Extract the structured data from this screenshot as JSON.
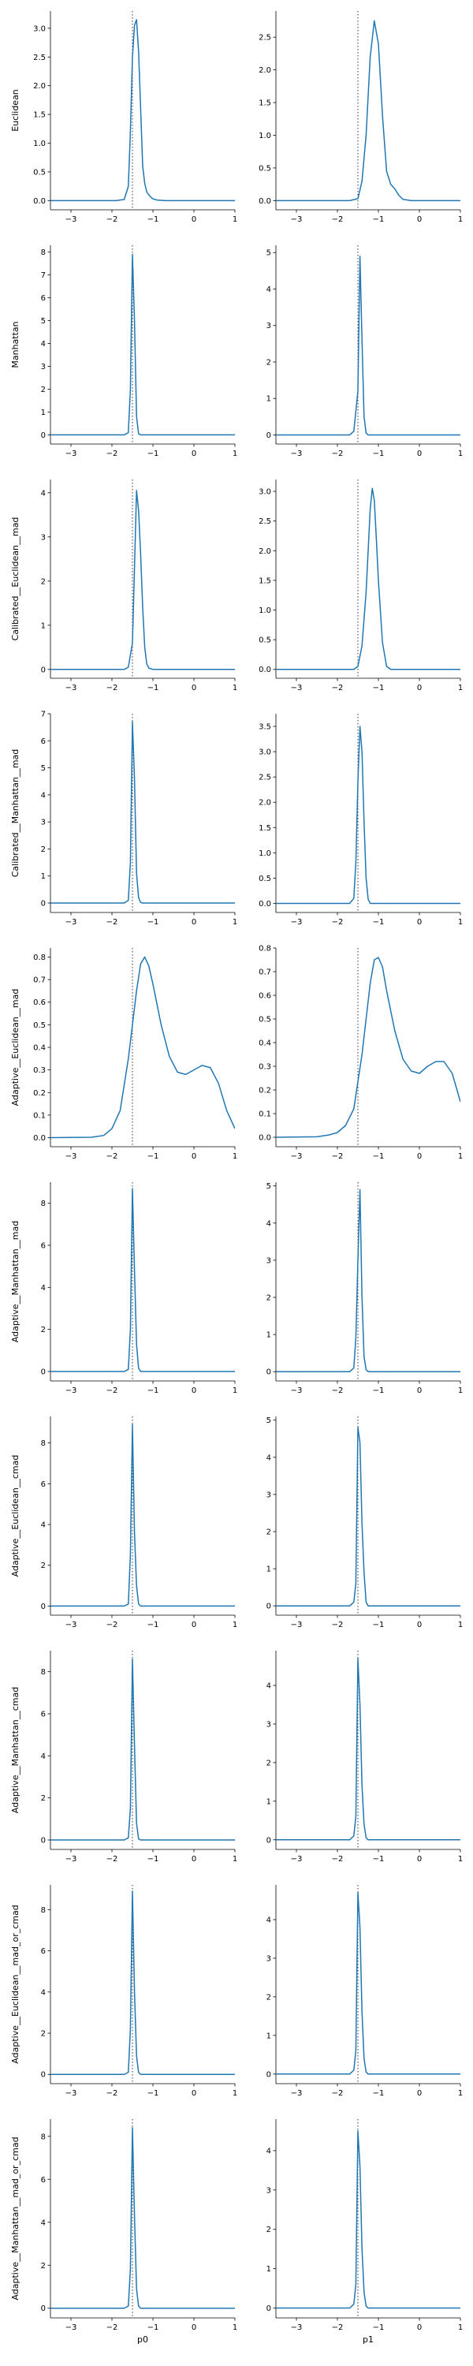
{
  "figure": {
    "xlabels": [
      "p0",
      "p1"
    ],
    "row_labels": [
      "Euclidean",
      "Manhattan",
      "Calibrated__Euclidean__mad",
      "Calibrated__Manhattan__mad",
      "Adaptive__Euclidean__mad",
      "Adaptive__Manhattan__mad",
      "Adaptive__Euclidean__cmad",
      "Adaptive__Manhattan__cmad",
      "Adaptive__Euclidean__mad_or_cmad",
      "Adaptive__Manhattan__mad_or_cmad"
    ],
    "colors": {
      "line": "#1f77b4",
      "axis": "#000000",
      "reference": "#333333"
    }
  },
  "chart_data": [
    {
      "type": "line",
      "row": 0,
      "col": 0,
      "xlabel": "",
      "ylabel": "Euclidean",
      "xlim": [
        -3.5,
        1
      ],
      "ylim": [
        -0.16,
        3.3
      ],
      "xticks": [
        -3,
        -2,
        -1,
        0,
        1
      ],
      "yticks": [
        0.0,
        0.5,
        1.0,
        1.5,
        2.0,
        2.5,
        3.0
      ],
      "reference_x": -1.5,
      "x": [
        -3.5,
        -1.9,
        -1.7,
        -1.6,
        -1.55,
        -1.5,
        -1.45,
        -1.4,
        -1.35,
        -1.3,
        -1.25,
        -1.2,
        -1.15,
        -1.1,
        -1.05,
        -1.0,
        -0.9,
        -0.7,
        1.0
      ],
      "y": [
        0,
        0,
        0.02,
        0.25,
        1.2,
        2.5,
        3.05,
        3.15,
        2.6,
        1.6,
        0.6,
        0.3,
        0.15,
        0.1,
        0.06,
        0.03,
        0.01,
        0,
        0
      ]
    },
    {
      "type": "line",
      "row": 0,
      "col": 1,
      "xlabel": "",
      "ylabel": "",
      "xlim": [
        -3.5,
        1
      ],
      "ylim": [
        -0.14,
        2.9
      ],
      "xticks": [
        -3,
        -2,
        -1,
        0,
        1
      ],
      "yticks": [
        0.0,
        0.5,
        1.0,
        1.5,
        2.0,
        2.5
      ],
      "reference_x": -1.5,
      "x": [
        -3.5,
        -1.7,
        -1.5,
        -1.4,
        -1.3,
        -1.2,
        -1.1,
        -1.0,
        -0.9,
        -0.8,
        -0.7,
        -0.6,
        -0.5,
        -0.4,
        -0.2,
        1.0
      ],
      "y": [
        0,
        0,
        0.03,
        0.3,
        1.0,
        2.2,
        2.75,
        2.4,
        1.3,
        0.45,
        0.25,
        0.18,
        0.08,
        0.02,
        0,
        0
      ]
    },
    {
      "type": "line",
      "row": 1,
      "col": 0,
      "xlabel": "",
      "ylabel": "Manhattan",
      "xlim": [
        -3.5,
        1
      ],
      "ylim": [
        -0.4,
        8.3
      ],
      "xticks": [
        -3,
        -2,
        -1,
        0,
        1
      ],
      "yticks": [
        0,
        1,
        2,
        3,
        4,
        5,
        6,
        7,
        8
      ],
      "reference_x": -1.5,
      "x": [
        -3.5,
        -1.7,
        -1.6,
        -1.55,
        -1.5,
        -1.45,
        -1.4,
        -1.35,
        -1.3,
        1.0
      ],
      "y": [
        0,
        0,
        0.1,
        2.0,
        7.9,
        5.0,
        0.8,
        0.05,
        0,
        0
      ]
    },
    {
      "type": "line",
      "row": 1,
      "col": 1,
      "xlabel": "",
      "ylabel": "",
      "xlim": [
        -3.5,
        1
      ],
      "ylim": [
        -0.25,
        5.2
      ],
      "xticks": [
        -3,
        -2,
        -1,
        0,
        1
      ],
      "yticks": [
        0,
        1,
        2,
        3,
        4,
        5
      ],
      "reference_x": -1.5,
      "x": [
        -3.5,
        -1.7,
        -1.6,
        -1.5,
        -1.45,
        -1.4,
        -1.35,
        -1.3,
        -1.25,
        1.0
      ],
      "y": [
        0,
        0,
        0.1,
        1.2,
        4.9,
        2.6,
        0.5,
        0.05,
        0,
        0
      ]
    },
    {
      "type": "line",
      "row": 2,
      "col": 0,
      "xlabel": "",
      "ylabel": "Calibrated__Euclidean__mad",
      "xlim": [
        -3.5,
        1
      ],
      "ylim": [
        -0.2,
        4.3
      ],
      "xticks": [
        -3,
        -2,
        -1,
        0,
        1
      ],
      "yticks": [
        0,
        1,
        2,
        3,
        4
      ],
      "reference_x": -1.5,
      "x": [
        -3.5,
        -1.7,
        -1.6,
        -1.5,
        -1.45,
        -1.4,
        -1.35,
        -1.3,
        -1.25,
        -1.2,
        -1.15,
        -1.1,
        -1.0,
        1.0
      ],
      "y": [
        0,
        0,
        0.05,
        0.6,
        2.3,
        4.05,
        3.6,
        2.6,
        1.4,
        0.5,
        0.12,
        0.03,
        0,
        0
      ]
    },
    {
      "type": "line",
      "row": 2,
      "col": 1,
      "xlabel": "",
      "ylabel": "",
      "xlim": [
        -3.5,
        1
      ],
      "ylim": [
        -0.15,
        3.2
      ],
      "xticks": [
        -3,
        -2,
        -1,
        0,
        1
      ],
      "yticks": [
        0.0,
        0.5,
        1.0,
        1.5,
        2.0,
        2.5,
        3.0
      ],
      "reference_x": -1.5,
      "x": [
        -3.5,
        -1.6,
        -1.5,
        -1.4,
        -1.3,
        -1.2,
        -1.15,
        -1.1,
        -1.05,
        -1.0,
        -0.9,
        -0.8,
        -0.7,
        1.0
      ],
      "y": [
        0,
        0,
        0.05,
        0.4,
        1.3,
        2.7,
        3.05,
        2.85,
        2.2,
        1.5,
        0.45,
        0.05,
        0,
        0
      ]
    },
    {
      "type": "line",
      "row": 3,
      "col": 0,
      "xlabel": "",
      "ylabel": "Calibrated__Manhattan__mad",
      "xlim": [
        -3.5,
        1
      ],
      "ylim": [
        -0.35,
        7.0
      ],
      "xticks": [
        -3,
        -2,
        -1,
        0,
        1
      ],
      "yticks": [
        0,
        1,
        2,
        3,
        4,
        5,
        6,
        7
      ],
      "reference_x": -1.5,
      "x": [
        -3.5,
        -1.7,
        -1.6,
        -1.55,
        -1.5,
        -1.45,
        -1.4,
        -1.35,
        -1.3,
        -1.25,
        1.0
      ],
      "y": [
        0,
        0,
        0.1,
        1.5,
        6.7,
        4.6,
        1.1,
        0.2,
        0.02,
        0,
        0
      ]
    },
    {
      "type": "line",
      "row": 3,
      "col": 1,
      "xlabel": "",
      "ylabel": "",
      "xlim": [
        -3.5,
        1
      ],
      "ylim": [
        -0.18,
        3.75
      ],
      "xticks": [
        -3,
        -2,
        -1,
        0,
        1
      ],
      "yticks": [
        0.0,
        0.5,
        1.0,
        1.5,
        2.0,
        2.5,
        3.0,
        3.5
      ],
      "reference_x": -1.5,
      "x": [
        -3.5,
        -1.7,
        -1.6,
        -1.55,
        -1.5,
        -1.45,
        -1.4,
        -1.35,
        -1.3,
        -1.25,
        -1.2,
        1.0
      ],
      "y": [
        0,
        0,
        0.1,
        0.8,
        2.4,
        3.5,
        3.0,
        1.6,
        0.5,
        0.08,
        0,
        0
      ]
    },
    {
      "type": "line",
      "row": 4,
      "col": 0,
      "xlabel": "",
      "ylabel": "Adaptive__Euclidean__mad",
      "xlim": [
        -3.5,
        1
      ],
      "ylim": [
        -0.04,
        0.84
      ],
      "xticks": [
        -3,
        -2,
        -1,
        0,
        1
      ],
      "yticks": [
        0.0,
        0.1,
        0.2,
        0.3,
        0.4,
        0.5,
        0.6,
        0.7,
        0.8
      ],
      "reference_x": -1.5,
      "x": [
        -3.5,
        -2.5,
        -2.2,
        -2.0,
        -1.8,
        -1.6,
        -1.4,
        -1.3,
        -1.2,
        -1.1,
        -1.0,
        -0.8,
        -0.6,
        -0.4,
        -0.2,
        0.0,
        0.2,
        0.4,
        0.6,
        0.8,
        1.0
      ],
      "y": [
        0,
        0.002,
        0.01,
        0.04,
        0.12,
        0.35,
        0.65,
        0.77,
        0.8,
        0.76,
        0.68,
        0.5,
        0.36,
        0.29,
        0.28,
        0.3,
        0.32,
        0.31,
        0.24,
        0.12,
        0.04
      ]
    },
    {
      "type": "line",
      "row": 4,
      "col": 1,
      "xlabel": "",
      "ylabel": "",
      "xlim": [
        -3.5,
        1
      ],
      "ylim": [
        -0.04,
        0.8
      ],
      "xticks": [
        -3,
        -2,
        -1,
        0,
        1
      ],
      "yticks": [
        0.0,
        0.1,
        0.2,
        0.3,
        0.4,
        0.5,
        0.6,
        0.7,
        0.8
      ],
      "reference_x": -1.5,
      "x": [
        -3.5,
        -2.5,
        -2.2,
        -2.0,
        -1.8,
        -1.6,
        -1.4,
        -1.2,
        -1.1,
        -1.0,
        -0.9,
        -0.8,
        -0.6,
        -0.4,
        -0.2,
        0.0,
        0.2,
        0.4,
        0.6,
        0.8,
        1.0
      ],
      "y": [
        0,
        0.002,
        0.01,
        0.02,
        0.05,
        0.12,
        0.35,
        0.65,
        0.75,
        0.76,
        0.72,
        0.62,
        0.45,
        0.33,
        0.28,
        0.27,
        0.3,
        0.32,
        0.32,
        0.27,
        0.15
      ]
    },
    {
      "type": "line",
      "row": 5,
      "col": 0,
      "xlabel": "",
      "ylabel": "Adaptive__Manhattan__mad",
      "xlim": [
        -3.5,
        1
      ],
      "ylim": [
        -0.45,
        9.0
      ],
      "xticks": [
        -3,
        -2,
        -1,
        0,
        1
      ],
      "yticks": [
        0,
        2,
        4,
        6,
        8
      ],
      "reference_x": -1.5,
      "x": [
        -3.5,
        -1.7,
        -1.6,
        -1.55,
        -1.5,
        -1.45,
        -1.4,
        -1.35,
        -1.3,
        1.0
      ],
      "y": [
        0,
        0,
        0.1,
        2.0,
        8.7,
        4.8,
        1.3,
        0.15,
        0,
        0
      ]
    },
    {
      "type": "line",
      "row": 5,
      "col": 1,
      "xlabel": "",
      "ylabel": "",
      "xlim": [
        -3.5,
        1
      ],
      "ylim": [
        -0.25,
        5.1
      ],
      "xticks": [
        -3,
        -2,
        -1,
        0,
        1
      ],
      "yticks": [
        0,
        1,
        2,
        3,
        4,
        5
      ],
      "reference_x": -1.5,
      "x": [
        -3.5,
        -1.7,
        -1.6,
        -1.55,
        -1.5,
        -1.45,
        -1.4,
        -1.35,
        -1.3,
        -1.25,
        1.0
      ],
      "y": [
        0,
        0,
        0.1,
        0.9,
        3.0,
        4.9,
        2.0,
        0.4,
        0.05,
        0,
        0
      ]
    },
    {
      "type": "line",
      "row": 6,
      "col": 0,
      "xlabel": "",
      "ylabel": "Adaptive__Euclidean__cmad",
      "xlim": [
        -3.5,
        1
      ],
      "ylim": [
        -0.45,
        9.3
      ],
      "xticks": [
        -3,
        -2,
        -1,
        0,
        1
      ],
      "yticks": [
        0,
        2,
        4,
        6,
        8
      ],
      "reference_x": -1.5,
      "x": [
        -3.5,
        -1.7,
        -1.6,
        -1.55,
        -1.5,
        -1.45,
        -1.4,
        -1.35,
        -1.3,
        1.0
      ],
      "y": [
        0,
        0,
        0.1,
        2.5,
        8.9,
        3.6,
        1.0,
        0.1,
        0,
        0
      ]
    },
    {
      "type": "line",
      "row": 6,
      "col": 1,
      "xlabel": "",
      "ylabel": "",
      "xlim": [
        -3.5,
        1
      ],
      "ylim": [
        -0.25,
        5.1
      ],
      "xticks": [
        -3,
        -2,
        -1,
        0,
        1
      ],
      "yticks": [
        0,
        1,
        2,
        3,
        4,
        5
      ],
      "reference_x": -1.5,
      "x": [
        -3.5,
        -1.7,
        -1.6,
        -1.55,
        -1.5,
        -1.45,
        -1.4,
        -1.35,
        -1.3,
        -1.25,
        1.0
      ],
      "y": [
        0,
        0,
        0.1,
        0.6,
        4.8,
        4.4,
        2.2,
        0.9,
        0.1,
        0,
        0
      ]
    },
    {
      "type": "line",
      "row": 7,
      "col": 0,
      "xlabel": "",
      "ylabel": "Adaptive__Manhattan__cmad",
      "xlim": [
        -3.5,
        1
      ],
      "ylim": [
        -0.45,
        9.0
      ],
      "xticks": [
        -3,
        -2,
        -1,
        0,
        1
      ],
      "yticks": [
        0,
        2,
        4,
        6,
        8
      ],
      "reference_x": -1.5,
      "x": [
        -3.5,
        -1.7,
        -1.6,
        -1.55,
        -1.5,
        -1.45,
        -1.4,
        -1.35,
        -1.3,
        1.0
      ],
      "y": [
        0,
        0,
        0.1,
        1.5,
        8.6,
        4.5,
        0.8,
        0.05,
        0,
        0
      ]
    },
    {
      "type": "line",
      "row": 7,
      "col": 1,
      "xlabel": "",
      "ylabel": "",
      "xlim": [
        -3.5,
        1
      ],
      "ylim": [
        -0.25,
        4.9
      ],
      "xticks": [
        -3,
        -2,
        -1,
        0,
        1
      ],
      "yticks": [
        0,
        1,
        2,
        3,
        4
      ],
      "reference_x": -1.5,
      "x": [
        -3.5,
        -1.7,
        -1.6,
        -1.55,
        -1.5,
        -1.45,
        -1.4,
        -1.35,
        -1.3,
        -1.25,
        1.0
      ],
      "y": [
        0,
        0,
        0.1,
        0.6,
        4.7,
        3.5,
        1.4,
        0.4,
        0.05,
        0,
        0
      ]
    },
    {
      "type": "line",
      "row": 8,
      "col": 0,
      "xlabel": "",
      "ylabel": "Adaptive__Euclidean__mad_or_cmad",
      "xlim": [
        -3.5,
        1
      ],
      "ylim": [
        -0.45,
        9.2
      ],
      "xticks": [
        -3,
        -2,
        -1,
        0,
        1
      ],
      "yticks": [
        0,
        2,
        4,
        6,
        8
      ],
      "reference_x": -1.5,
      "x": [
        -3.5,
        -1.7,
        -1.6,
        -1.55,
        -1.5,
        -1.45,
        -1.4,
        -1.35,
        -1.3,
        1.0
      ],
      "y": [
        0,
        0,
        0.1,
        2.2,
        8.9,
        4.0,
        0.9,
        0.1,
        0,
        0
      ]
    },
    {
      "type": "line",
      "row": 8,
      "col": 1,
      "xlabel": "",
      "ylabel": "",
      "xlim": [
        -3.5,
        1
      ],
      "ylim": [
        -0.25,
        4.9
      ],
      "xticks": [
        -3,
        -2,
        -1,
        0,
        1
      ],
      "yticks": [
        0,
        1,
        2,
        3,
        4
      ],
      "reference_x": -1.5,
      "x": [
        -3.5,
        -1.7,
        -1.6,
        -1.55,
        -1.5,
        -1.45,
        -1.4,
        -1.35,
        -1.3,
        -1.25,
        1.0
      ],
      "y": [
        0,
        0,
        0.1,
        0.6,
        4.7,
        3.8,
        1.6,
        0.4,
        0.05,
        0,
        0
      ]
    },
    {
      "type": "line",
      "row": 9,
      "col": 0,
      "xlabel": "p0",
      "ylabel": "Adaptive__Manhattan__mad_or_cmad",
      "xlim": [
        -3.5,
        1
      ],
      "ylim": [
        -0.45,
        8.8
      ],
      "xticks": [
        -3,
        -2,
        -1,
        0,
        1
      ],
      "yticks": [
        0,
        2,
        4,
        6,
        8
      ],
      "reference_x": -1.5,
      "x": [
        -3.5,
        -1.7,
        -1.6,
        -1.55,
        -1.5,
        -1.45,
        -1.4,
        -1.35,
        -1.3,
        1.0
      ],
      "y": [
        0,
        0,
        0.1,
        1.8,
        8.4,
        4.3,
        0.9,
        0.1,
        0,
        0
      ]
    },
    {
      "type": "line",
      "row": 9,
      "col": 1,
      "xlabel": "p1",
      "ylabel": "",
      "xlim": [
        -3.5,
        1
      ],
      "ylim": [
        -0.25,
        4.8
      ],
      "xticks": [
        -3,
        -2,
        -1,
        0,
        1
      ],
      "yticks": [
        0,
        1,
        2,
        3,
        4
      ],
      "reference_x": -1.5,
      "x": [
        -3.5,
        -1.7,
        -1.6,
        -1.55,
        -1.5,
        -1.45,
        -1.4,
        -1.35,
        -1.3,
        -1.25,
        1.0
      ],
      "y": [
        0,
        0,
        0.1,
        0.6,
        4.5,
        3.6,
        1.5,
        0.4,
        0.05,
        0,
        0
      ]
    }
  ]
}
